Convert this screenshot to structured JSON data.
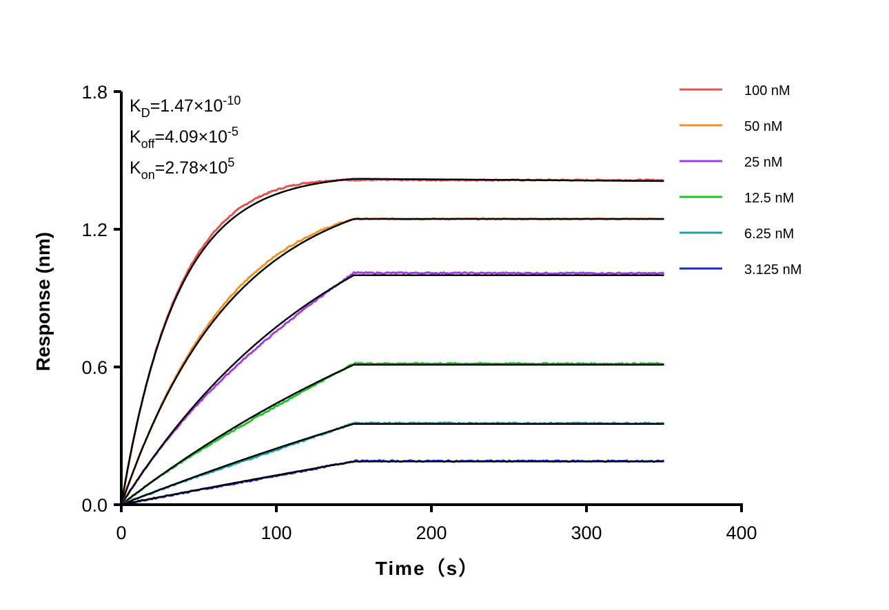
{
  "chart_data": {
    "type": "line",
    "title": "",
    "xlabel": "Time（s）",
    "ylabel": "Response (nm)",
    "xlim": [
      0,
      400
    ],
    "ylim": [
      0,
      1.8
    ],
    "x_ticks": [
      "0",
      "100",
      "200",
      "300",
      "400"
    ],
    "y_ticks": [
      "0.0",
      "0.6",
      "1.2",
      "1.8"
    ],
    "grid": false,
    "legend_position": "top-right",
    "association_end_s": 150,
    "dissociation_end_s": 350,
    "annotations": [
      {
        "base": "K",
        "sub": "D",
        "value": "=1.47×10",
        "exp": "-10"
      },
      {
        "base": "K",
        "sub": "off",
        "value": "=4.09×10",
        "exp": "-5"
      },
      {
        "base": "K",
        "sub": "on",
        "value": "=2.78×10",
        "exp": "5"
      }
    ],
    "series": [
      {
        "name": "100 nM",
        "color": "#e8504c",
        "plateau": 1.415,
        "fit_end": 1.41
      },
      {
        "name": "50 nM",
        "color": "#f0921f",
        "plateau": 1.245,
        "fit_end": 1.245
      },
      {
        "name": "25 nM",
        "color": "#a33de0",
        "plateau": 1.01,
        "fit_end": 1.0
      },
      {
        "name": "12.5 nM",
        "color": "#22c02a",
        "plateau": 0.615,
        "fit_end": 0.61
      },
      {
        "name": "6.25 nM",
        "color": "#1ea0a8",
        "plateau": 0.355,
        "fit_end": 0.352
      },
      {
        "name": "3.125 nM",
        "color": "#1a28d0",
        "plateau": 0.19,
        "fit_end": 0.188
      }
    ],
    "fit_line_color": "#000000"
  }
}
